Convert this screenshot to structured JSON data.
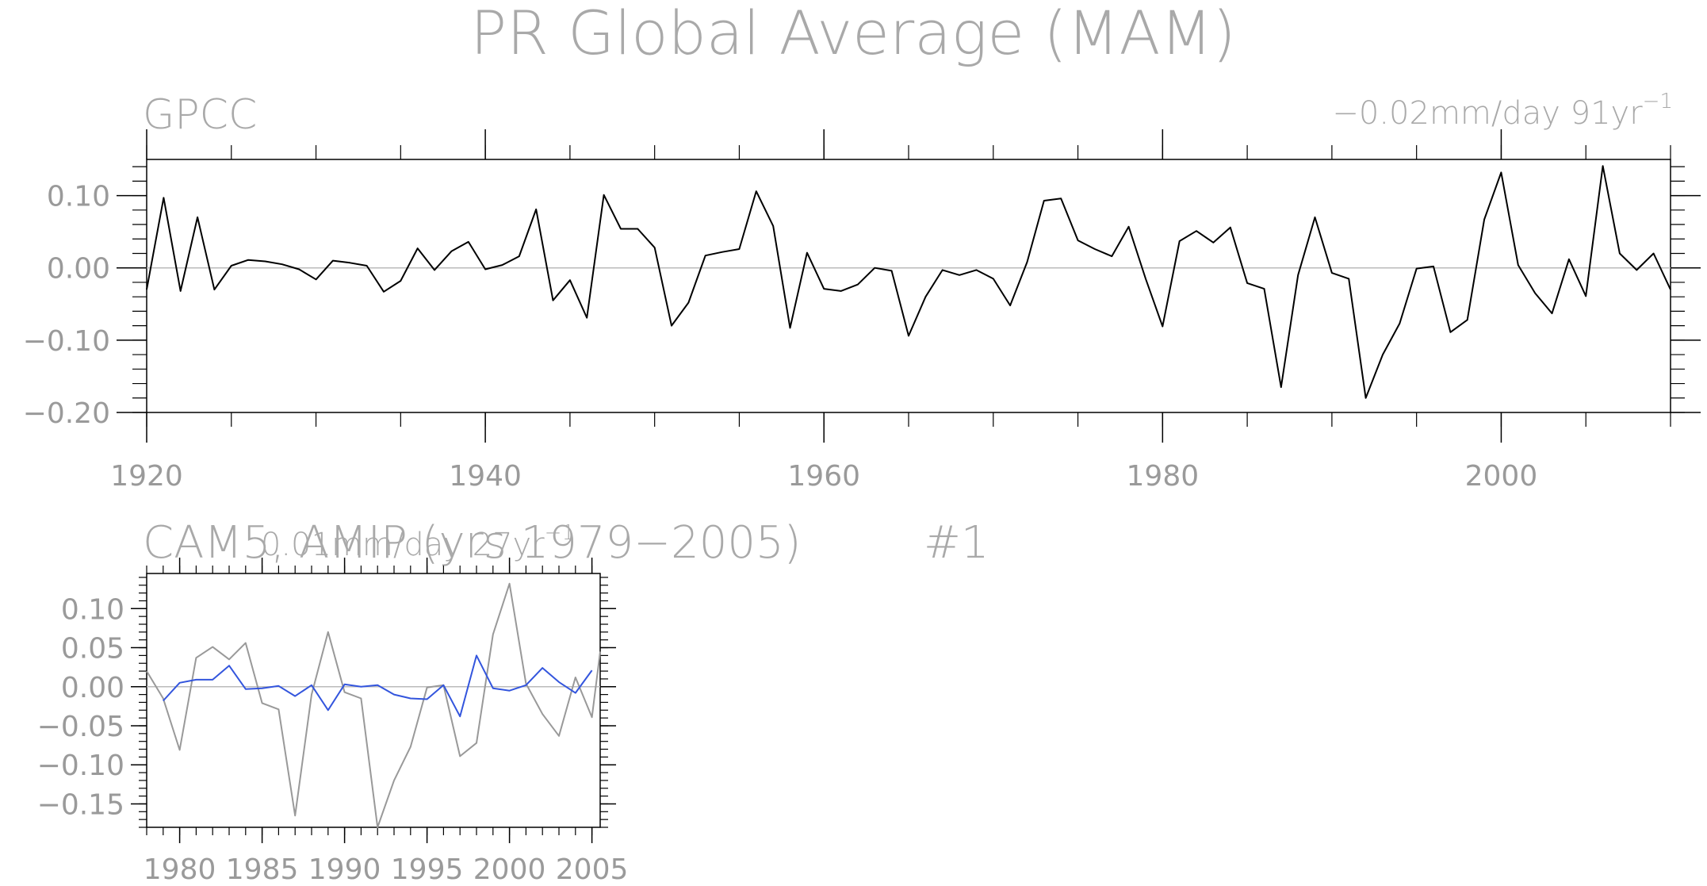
{
  "title": "PR Global Average (MAM)",
  "chart_data": [
    {
      "type": "line",
      "panel_label": "GPCC",
      "trend_label": "−0.02mm/day 91yr",
      "trend_exponent": "−1",
      "xlim": [
        1920,
        2010
      ],
      "ylim": [
        -0.2,
        0.15
      ],
      "x_ticks": [
        1920,
        1940,
        1960,
        1980,
        2000
      ],
      "y_ticks": [
        0.1,
        0.0,
        -0.1,
        -0.2
      ],
      "y_tick_labels": [
        "0.10",
        "0.00",
        "−0.10",
        "−0.20"
      ],
      "zero_line": true,
      "series": [
        {
          "color": "#000000",
          "x": [
            1920,
            1921,
            1922,
            1923,
            1924,
            1925,
            1926,
            1927,
            1928,
            1929,
            1930,
            1931,
            1932,
            1933,
            1934,
            1935,
            1936,
            1937,
            1938,
            1939,
            1940,
            1941,
            1942,
            1943,
            1944,
            1945,
            1946,
            1947,
            1948,
            1949,
            1950,
            1951,
            1952,
            1953,
            1954,
            1955,
            1956,
            1957,
            1958,
            1959,
            1960,
            1961,
            1962,
            1963,
            1964,
            1965,
            1966,
            1967,
            1968,
            1969,
            1970,
            1971,
            1972,
            1973,
            1974,
            1975,
            1976,
            1977,
            1978,
            1979,
            1980,
            1981,
            1982,
            1983,
            1984,
            1985,
            1986,
            1987,
            1988,
            1989,
            1990,
            1991,
            1992,
            1993,
            1994,
            1995,
            1996,
            1997,
            1998,
            1999,
            2000,
            2001,
            2002,
            2003,
            2004,
            2005,
            2006,
            2007,
            2008,
            2009,
            2010
          ],
          "values": [
            -0.03,
            0.097,
            -0.032,
            0.07,
            -0.03,
            0.003,
            0.011,
            0.009,
            0.005,
            -0.002,
            -0.016,
            0.01,
            0.007,
            0.003,
            -0.033,
            -0.018,
            0.027,
            -0.003,
            0.023,
            0.036,
            -0.002,
            0.004,
            0.016,
            0.081,
            -0.045,
            -0.017,
            -0.069,
            0.101,
            0.054,
            0.054,
            0.028,
            -0.08,
            -0.048,
            0.017,
            0.022,
            0.026,
            0.106,
            0.058,
            -0.083,
            0.021,
            -0.029,
            -0.032,
            -0.023,
            0.0,
            -0.004,
            -0.094,
            -0.04,
            -0.003,
            -0.01,
            -0.003,
            -0.015,
            -0.052,
            0.008,
            0.093,
            0.096,
            0.038,
            0.026,
            0.016,
            0.057,
            -0.015,
            -0.081,
            0.037,
            0.051,
            0.035,
            0.056,
            -0.021,
            -0.029,
            -0.165,
            -0.01,
            0.07,
            -0.007,
            -0.015,
            -0.18,
            -0.12,
            -0.077,
            -0.001,
            0.002,
            -0.089,
            -0.072,
            0.067,
            0.132,
            0.004,
            -0.035,
            -0.063,
            0.012,
            -0.039,
            0.141,
            0.02,
            -0.003,
            0.02,
            -0.03
          ]
        }
      ]
    },
    {
      "type": "line",
      "panel_label": "CAM5, AMIP (yrs 1979−2005)",
      "trend_label": "0.01mm/day 27yr",
      "trend_exponent": "−1",
      "member_label": "#1",
      "xlim": [
        1978,
        2005.5
      ],
      "ylim": [
        -0.18,
        0.145
      ],
      "x_ticks": [
        1980,
        1985,
        1990,
        1995,
        2000,
        2005
      ],
      "y_ticks": [
        0.1,
        0.05,
        0.0,
        -0.05,
        -0.1,
        -0.15
      ],
      "y_tick_labels": [
        "0.10",
        "0.05",
        "0.00",
        "−0.05",
        "−0.10",
        "−0.15"
      ],
      "zero_line": true,
      "series": [
        {
          "color": "#999999",
          "x": [
            1978,
            1979,
            1980,
            1981,
            1982,
            1983,
            1984,
            1985,
            1986,
            1987,
            1988,
            1989,
            1990,
            1991,
            1992,
            1993,
            1994,
            1995,
            1996,
            1997,
            1998,
            1999,
            2000,
            2001,
            2002,
            2003,
            2004,
            2005,
            2005.5
          ],
          "values": [
            0.02,
            -0.015,
            -0.081,
            0.037,
            0.051,
            0.035,
            0.056,
            -0.021,
            -0.029,
            -0.165,
            -0.01,
            0.07,
            -0.007,
            -0.015,
            -0.18,
            -0.12,
            -0.077,
            -0.001,
            0.002,
            -0.089,
            -0.072,
            0.067,
            0.132,
            0.004,
            -0.035,
            -0.063,
            0.012,
            -0.039,
            0.045
          ]
        },
        {
          "color": "#3355dd",
          "x": [
            1979,
            1980,
            1981,
            1982,
            1983,
            1984,
            1985,
            1986,
            1987,
            1988,
            1989,
            1990,
            1991,
            1992,
            1993,
            1994,
            1995,
            1996,
            1997,
            1998,
            1999,
            2000,
            2001,
            2002,
            2003,
            2004,
            2005
          ],
          "values": [
            -0.018,
            0.005,
            0.009,
            0.009,
            0.027,
            -0.003,
            -0.002,
            0.001,
            -0.012,
            0.002,
            -0.03,
            0.003,
            0.0,
            0.002,
            -0.01,
            -0.015,
            -0.016,
            0.002,
            -0.038,
            0.04,
            -0.002,
            -0.005,
            0.002,
            0.024,
            0.006,
            -0.008,
            0.021
          ]
        }
      ]
    }
  ]
}
